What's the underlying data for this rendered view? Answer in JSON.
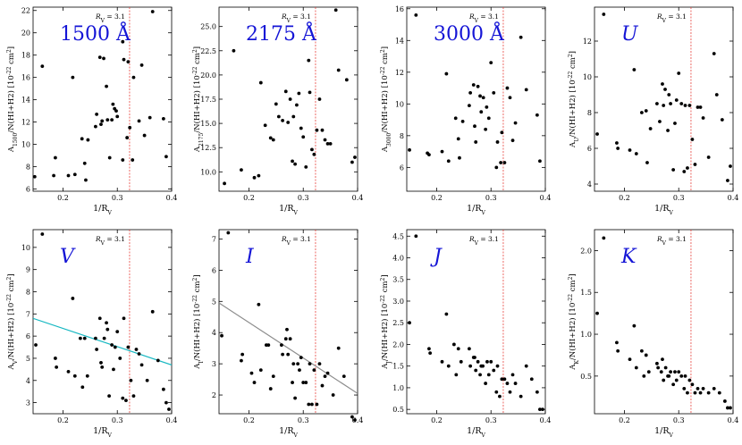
{
  "colors": {
    "band": "#1515d6",
    "rv_line": "#e8413c",
    "fit_cyan": "#17b8c2",
    "fit_grey": "#8c8c8c",
    "point": "#000000"
  },
  "chart_data": [
    {
      "type": "scatter",
      "band_label": "1500 Å",
      "label_italic": false,
      "xlabel": "1/R_V",
      "ylabel": "A_1500/N(HI+H2) [10^-22 cm^2]",
      "xlim": [
        0.145,
        0.4
      ],
      "ylim": [
        5.8,
        22.3
      ],
      "xticks": [
        "0.2",
        "0.3",
        "0.4"
      ],
      "yticks": [
        "6",
        "8",
        "10",
        "12",
        "14",
        "16",
        "18",
        "20",
        "22"
      ],
      "rv_line_x": 0.3226,
      "rv_label": "R_V = 3.1",
      "fit_line": null,
      "x": [
        0.148,
        0.162,
        0.183,
        0.186,
        0.21,
        0.218,
        0.222,
        0.235,
        0.24,
        0.242,
        0.246,
        0.26,
        0.262,
        0.268,
        0.27,
        0.272,
        0.275,
        0.28,
        0.282,
        0.286,
        0.29,
        0.292,
        0.295,
        0.298,
        0.3,
        0.31,
        0.31,
        0.312,
        0.318,
        0.32,
        0.323,
        0.328,
        0.33,
        0.34,
        0.345,
        0.35,
        0.36,
        0.365,
        0.385,
        0.39
      ],
      "y": [
        7.1,
        17.0,
        7.2,
        8.8,
        7.2,
        16.0,
        7.3,
        10.5,
        8.3,
        6.8,
        10.4,
        11.6,
        12.7,
        17.8,
        11.8,
        12.1,
        17.7,
        15.2,
        12.2,
        8.8,
        12.2,
        13.6,
        13.2,
        13.0,
        12.5,
        8.6,
        19.2,
        17.6,
        10.6,
        17.4,
        11.5,
        8.6,
        16.0,
        12.1,
        17.1,
        10.8,
        12.4,
        21.9,
        12.3,
        8.9
      ]
    },
    {
      "type": "scatter",
      "band_label": "2175 Å",
      "label_italic": false,
      "xlabel": "1/R_V",
      "ylabel": "A_2175/N(HI+H2) [10^-22 cm^2]",
      "xlim": [
        0.145,
        0.4
      ],
      "ylim": [
        8.0,
        27.0
      ],
      "xticks": [
        "0.2",
        "0.3",
        "0.4"
      ],
      "yticks": [
        "10.0",
        "12.5",
        "15.0",
        "17.5",
        "20.0",
        "22.5",
        "25.0"
      ],
      "rv_line_x": 0.3226,
      "rv_label": "R_V = 3.1",
      "fit_line": null,
      "x": [
        0.155,
        0.172,
        0.186,
        0.21,
        0.218,
        0.222,
        0.23,
        0.24,
        0.245,
        0.25,
        0.255,
        0.262,
        0.268,
        0.272,
        0.276,
        0.28,
        0.282,
        0.285,
        0.288,
        0.292,
        0.296,
        0.3,
        0.305,
        0.31,
        0.312,
        0.316,
        0.32,
        0.325,
        0.33,
        0.335,
        0.34,
        0.345,
        0.35,
        0.36,
        0.365,
        0.38,
        0.39,
        0.395
      ],
      "y": [
        8.8,
        22.5,
        10.2,
        9.4,
        9.6,
        19.2,
        14.8,
        13.5,
        13.3,
        17.0,
        15.7,
        15.3,
        18.3,
        15.1,
        17.5,
        11.1,
        15.7,
        10.8,
        16.9,
        18.1,
        14.5,
        13.6,
        10.5,
        21.5,
        18.2,
        12.3,
        11.8,
        14.3,
        17.5,
        14.3,
        13.3,
        12.9,
        12.9,
        26.7,
        20.5,
        19.5,
        11.0,
        11.5
      ]
    },
    {
      "type": "scatter",
      "band_label": "3000 Å",
      "label_italic": false,
      "xlabel": "1/R_V",
      "ylabel": "A_3000/N(HI+H2) [10^-22 cm^2]",
      "xlim": [
        0.145,
        0.4
      ],
      "ylim": [
        4.5,
        16.1
      ],
      "xticks": [
        "0.2",
        "0.3",
        "0.4"
      ],
      "yticks": [
        "6",
        "8",
        "10",
        "12",
        "14",
        "16"
      ],
      "rv_line_x": 0.3226,
      "rv_label": "R_V = 3.1",
      "fit_line": null,
      "x": [
        0.15,
        0.162,
        0.183,
        0.186,
        0.21,
        0.218,
        0.222,
        0.235,
        0.24,
        0.242,
        0.248,
        0.26,
        0.262,
        0.268,
        0.27,
        0.272,
        0.276,
        0.28,
        0.282,
        0.286,
        0.29,
        0.292,
        0.296,
        0.3,
        0.305,
        0.31,
        0.312,
        0.318,
        0.32,
        0.325,
        0.33,
        0.335,
        0.34,
        0.345,
        0.355,
        0.365,
        0.385,
        0.39
      ],
      "y": [
        7.1,
        15.6,
        6.9,
        6.8,
        7.0,
        11.9,
        6.4,
        9.1,
        7.8,
        6.6,
        8.9,
        9.9,
        10.7,
        11.2,
        8.6,
        7.6,
        11.1,
        10.5,
        9.5,
        10.4,
        8.4,
        9.8,
        9.1,
        12.6,
        10.7,
        6.0,
        7.6,
        6.3,
        8.2,
        6.3,
        11.0,
        10.4,
        7.7,
        8.8,
        14.2,
        10.9,
        9.3,
        6.4
      ]
    },
    {
      "type": "scatter",
      "band_label": "U",
      "label_italic": true,
      "xlabel": "1/R_V",
      "ylabel": "A_U/N(HI+H2) [10^-22 cm^2]",
      "xlim": [
        0.145,
        0.4
      ],
      "ylim": [
        3.6,
        13.9
      ],
      "xticks": [
        "0.2",
        "0.3",
        "0.4"
      ],
      "yticks": [
        "4",
        "6",
        "8",
        "10",
        "12"
      ],
      "rv_line_x": 0.3226,
      "rv_label": "R_V = 3.1",
      "fit_line": null,
      "x": [
        0.15,
        0.162,
        0.186,
        0.188,
        0.21,
        0.218,
        0.222,
        0.232,
        0.24,
        0.242,
        0.248,
        0.26,
        0.265,
        0.27,
        0.272,
        0.275,
        0.28,
        0.282,
        0.285,
        0.29,
        0.293,
        0.296,
        0.3,
        0.305,
        0.31,
        0.312,
        0.316,
        0.32,
        0.325,
        0.33,
        0.335,
        0.34,
        0.345,
        0.355,
        0.365,
        0.37,
        0.38,
        0.39,
        0.395
      ],
      "y": [
        6.8,
        13.5,
        6.3,
        6.0,
        5.9,
        10.4,
        5.7,
        8.0,
        8.1,
        5.2,
        7.1,
        8.5,
        7.5,
        9.6,
        8.4,
        9.3,
        7.0,
        9.0,
        8.5,
        4.8,
        7.4,
        8.7,
        10.2,
        8.5,
        4.7,
        8.4,
        4.9,
        8.4,
        6.5,
        5.1,
        8.3,
        8.3,
        7.7,
        5.5,
        11.3,
        9.0,
        7.6,
        4.2,
        5.0
      ]
    },
    {
      "type": "scatter",
      "band_label": "V",
      "label_italic": true,
      "xlabel": "1/R_V",
      "ylabel": "A_V/N(HI+H2) [10^-22 cm^2]",
      "xlim": [
        0.145,
        0.4
      ],
      "ylim": [
        2.5,
        10.8
      ],
      "xticks": [
        "0.2",
        "0.3",
        "0.4"
      ],
      "yticks": [
        "3",
        "4",
        "5",
        "6",
        "7",
        "8",
        "9",
        "10"
      ],
      "rv_line_x": 0.3226,
      "rv_label": "R_V = 3.1",
      "fit_line": {
        "x": [
          0.145,
          0.4
        ],
        "y": [
          6.8,
          4.7
        ],
        "color": "#17b8c2"
      },
      "x": [
        0.15,
        0.162,
        0.186,
        0.188,
        0.21,
        0.218,
        0.222,
        0.232,
        0.236,
        0.24,
        0.245,
        0.26,
        0.262,
        0.268,
        0.27,
        0.272,
        0.276,
        0.28,
        0.282,
        0.285,
        0.29,
        0.293,
        0.296,
        0.3,
        0.305,
        0.31,
        0.312,
        0.316,
        0.32,
        0.325,
        0.33,
        0.335,
        0.34,
        0.345,
        0.355,
        0.365,
        0.375,
        0.385,
        0.39,
        0.395
      ],
      "y": [
        5.6,
        10.6,
        5.0,
        4.6,
        4.4,
        7.7,
        4.2,
        5.9,
        3.7,
        5.9,
        4.2,
        5.9,
        5.4,
        6.8,
        4.8,
        4.6,
        5.9,
        6.6,
        6.3,
        3.3,
        5.6,
        4.5,
        5.5,
        6.2,
        5.0,
        3.2,
        6.8,
        3.1,
        5.5,
        4.0,
        3.3,
        5.4,
        5.2,
        4.7,
        4.0,
        7.1,
        4.9,
        3.6,
        3.0,
        2.7
      ]
    },
    {
      "type": "scatter",
      "band_label": "I",
      "label_italic": true,
      "xlabel": "1/R_V",
      "ylabel": "A_I/N(HI+H2) [10^-22 cm^2]",
      "xlim": [
        0.145,
        0.4
      ],
      "ylim": [
        1.4,
        7.3
      ],
      "xticks": [
        "0.2",
        "0.3",
        "0.4"
      ],
      "yticks": [
        "2",
        "3",
        "4",
        "5",
        "6",
        "7"
      ],
      "rv_line_x": 0.3226,
      "rv_label": "R_V = 3.1",
      "fit_line": {
        "x": [
          0.145,
          0.4
        ],
        "y": [
          4.95,
          2.05
        ],
        "color": "#8c8c8c"
      },
      "x": [
        0.15,
        0.162,
        0.186,
        0.188,
        0.205,
        0.21,
        0.218,
        0.222,
        0.232,
        0.236,
        0.24,
        0.245,
        0.26,
        0.262,
        0.268,
        0.27,
        0.272,
        0.276,
        0.28,
        0.282,
        0.285,
        0.29,
        0.293,
        0.296,
        0.3,
        0.305,
        0.31,
        0.312,
        0.316,
        0.32,
        0.325,
        0.33,
        0.335,
        0.34,
        0.345,
        0.355,
        0.365,
        0.375,
        0.39,
        0.395
      ],
      "y": [
        3.9,
        7.2,
        3.1,
        3.3,
        2.7,
        2.4,
        4.9,
        2.8,
        3.6,
        3.6,
        2.2,
        2.6,
        3.6,
        3.3,
        3.8,
        4.1,
        3.3,
        3.8,
        2.4,
        3.0,
        1.9,
        3.0,
        2.8,
        3.2,
        2.4,
        2.4,
        1.7,
        3.0,
        1.7,
        2.8,
        1.7,
        3.0,
        2.3,
        2.6,
        2.7,
        2.0,
        3.5,
        2.6,
        1.3,
        1.2
      ]
    },
    {
      "type": "scatter",
      "band_label": "J",
      "label_italic": true,
      "xlabel": "1/R_V",
      "ylabel": "A_J/N(HI+H2) [10^-22 cm^2]",
      "xlim": [
        0.145,
        0.4
      ],
      "ylim": [
        0.4,
        4.65
      ],
      "xticks": [
        "0.2",
        "0.3",
        "0.4"
      ],
      "yticks": [
        "0.5",
        "1.0",
        "1.5",
        "2.0",
        "2.5",
        "3.0",
        "3.5",
        "4.0",
        "4.5"
      ],
      "rv_line_x": 0.3226,
      "rv_label": "R_V = 3.1",
      "fit_line": null,
      "x": [
        0.15,
        0.162,
        0.186,
        0.188,
        0.21,
        0.218,
        0.222,
        0.232,
        0.236,
        0.24,
        0.245,
        0.26,
        0.262,
        0.268,
        0.27,
        0.272,
        0.276,
        0.28,
        0.282,
        0.285,
        0.29,
        0.293,
        0.296,
        0.3,
        0.305,
        0.31,
        0.312,
        0.316,
        0.32,
        0.325,
        0.33,
        0.335,
        0.34,
        0.345,
        0.355,
        0.365,
        0.375,
        0.385,
        0.39,
        0.395
      ],
      "y": [
        2.5,
        4.5,
        1.9,
        1.8,
        1.6,
        2.7,
        1.5,
        2.0,
        1.3,
        1.9,
        1.6,
        1.9,
        1.5,
        1.7,
        1.7,
        1.4,
        1.6,
        1.3,
        1.5,
        1.5,
        1.1,
        1.6,
        1.3,
        1.6,
        1.4,
        0.9,
        1.5,
        0.8,
        1.2,
        1.2,
        1.1,
        0.9,
        1.3,
        1.1,
        0.8,
        1.5,
        1.2,
        0.9,
        0.5,
        0.5
      ]
    },
    {
      "type": "scatter",
      "band_label": "K",
      "label_italic": true,
      "xlabel": "1/R_V",
      "ylabel": "A_K/N(HI+H2) [10^-22 cm^2]",
      "xlim": [
        0.145,
        0.4
      ],
      "ylim": [
        0.05,
        2.25
      ],
      "xticks": [
        "0.2",
        "0.3",
        "0.4"
      ],
      "yticks": [
        "0.5",
        "1.0",
        "1.5",
        "2.0"
      ],
      "rv_line_x": 0.3226,
      "rv_label": "R_V = 3.1",
      "fit_line": null,
      "x": [
        0.15,
        0.162,
        0.186,
        0.188,
        0.21,
        0.218,
        0.222,
        0.232,
        0.236,
        0.24,
        0.245,
        0.26,
        0.262,
        0.268,
        0.27,
        0.272,
        0.276,
        0.28,
        0.282,
        0.285,
        0.29,
        0.293,
        0.296,
        0.3,
        0.305,
        0.31,
        0.312,
        0.316,
        0.32,
        0.325,
        0.33,
        0.335,
        0.34,
        0.345,
        0.355,
        0.365,
        0.375,
        0.385,
        0.39,
        0.395
      ],
      "y": [
        1.25,
        2.15,
        0.9,
        0.8,
        0.7,
        1.1,
        0.6,
        0.8,
        0.5,
        0.75,
        0.55,
        0.65,
        0.6,
        0.55,
        0.7,
        0.45,
        0.6,
        0.5,
        0.5,
        0.55,
        0.4,
        0.55,
        0.45,
        0.55,
        0.5,
        0.35,
        0.5,
        0.3,
        0.45,
        0.4,
        0.3,
        0.35,
        0.3,
        0.35,
        0.3,
        0.35,
        0.3,
        0.2,
        0.12,
        0.12
      ]
    }
  ]
}
